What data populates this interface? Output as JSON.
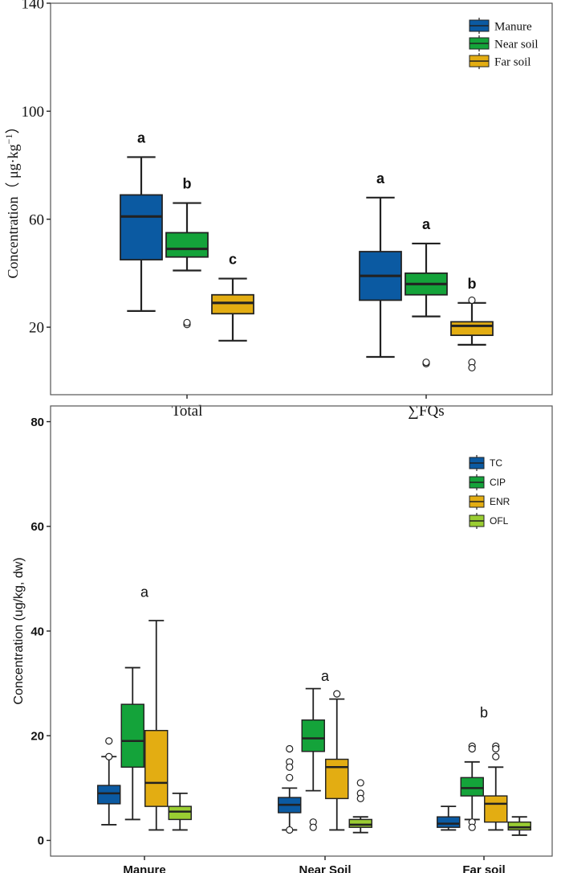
{
  "colors": {
    "manure": "#0b5aa2",
    "near": "#14a33a",
    "far": "#e3ad12",
    "ofl": "#9acd32",
    "line": "#222222",
    "frame": "#555555"
  },
  "chart_data": [
    {
      "type": "box",
      "title": "",
      "xlabel": "",
      "ylabel_prefix": "Concentration（ μg·kg",
      "ylabel_sup": "−1",
      "ylabel_suffix": "）",
      "ylim": [
        -5,
        140
      ],
      "yticks": [
        20,
        60,
        100,
        140
      ],
      "categories": [
        "Total",
        "∑FQs"
      ],
      "legend": [
        "Manure",
        "Near soil",
        "Far soil"
      ],
      "legend_position": "top-right",
      "series": [
        {
          "name": "Manure",
          "color": "#0b5aa2",
          "boxes": [
            {
              "min": 26,
              "q1": 45,
              "median": 61,
              "q3": 69,
              "max": 83,
              "outliers": [],
              "letter": "a"
            },
            {
              "min": 9,
              "q1": 30,
              "median": 39,
              "q3": 48,
              "max": 68,
              "outliers": [],
              "letter": "a"
            }
          ]
        },
        {
          "name": "Near soil",
          "color": "#14a33a",
          "boxes": [
            {
              "min": 41,
              "q1": 46,
              "median": 49,
              "q3": 55,
              "max": 66,
              "outliers": [
                21,
                21.7
              ],
              "letter": "b"
            },
            {
              "min": 24,
              "q1": 32,
              "median": 36,
              "q3": 40,
              "max": 51,
              "outliers": [
                6.5,
                7
              ],
              "letter": "a"
            }
          ]
        },
        {
          "name": "Far soil",
          "color": "#e3ad12",
          "boxes": [
            {
              "min": 15,
              "q1": 25,
              "median": 29,
              "q3": 32,
              "max": 38,
              "outliers": [],
              "letter": "c"
            },
            {
              "min": 13.5,
              "q1": 17,
              "median": 20.5,
              "q3": 22,
              "max": 29,
              "outliers": [
                30,
                7,
                5
              ],
              "letter": "b"
            }
          ]
        }
      ]
    },
    {
      "type": "box",
      "title": "",
      "xlabel": "",
      "ylabel": "Concentration (ug/kg, dw)",
      "ylim": [
        -3,
        83
      ],
      "yticks": [
        0,
        20,
        40,
        60,
        80
      ],
      "categories": [
        "Manure",
        "Near Soil",
        "Far soil"
      ],
      "legend": [
        "TC",
        "CIP",
        "ENR",
        "OFL"
      ],
      "legend_position": "top-right",
      "group_letters": [
        {
          "letter": "a",
          "y": 46.5
        },
        {
          "letter": "a",
          "y": 30.5
        },
        {
          "letter": "b",
          "y": 23.5
        }
      ],
      "series": [
        {
          "name": "TC",
          "color": "#0b5aa2",
          "boxes": [
            {
              "min": 3,
              "q1": 7,
              "median": 9,
              "q3": 10.5,
              "max": 16,
              "outliers": [
                19,
                16
              ]
            },
            {
              "min": 2,
              "q1": 5.3,
              "median": 6.8,
              "q3": 8.2,
              "max": 10,
              "outliers": [
                17.5,
                15,
                14,
                12,
                2
              ]
            },
            {
              "min": 2,
              "q1": 2.5,
              "median": 3.2,
              "q3": 4.5,
              "max": 6.5,
              "outliers": []
            }
          ]
        },
        {
          "name": "CIP",
          "color": "#14a33a",
          "boxes": [
            {
              "min": 4,
              "q1": 14,
              "median": 19,
              "q3": 26,
              "max": 33,
              "outliers": []
            },
            {
              "min": 9.5,
              "q1": 17,
              "median": 19.5,
              "q3": 23,
              "max": 29,
              "outliers": [
                3.5,
                2.5
              ]
            },
            {
              "min": 4,
              "q1": 8.5,
              "median": 10,
              "q3": 12,
              "max": 15,
              "outliers": [
                18,
                17.5,
                3.5,
                2.5
              ]
            }
          ]
        },
        {
          "name": "ENR",
          "color": "#e3ad12",
          "boxes": [
            {
              "min": 2,
              "q1": 6.5,
              "median": 11,
              "q3": 21,
              "max": 42,
              "outliers": []
            },
            {
              "min": 2,
              "q1": 8,
              "median": 14,
              "q3": 15.5,
              "max": 27,
              "outliers": [
                28
              ]
            },
            {
              "min": 2,
              "q1": 3.5,
              "median": 7,
              "q3": 8.5,
              "max": 14,
              "outliers": [
                18,
                17.5,
                16
              ]
            }
          ]
        },
        {
          "name": "OFL",
          "color": "#9acd32",
          "boxes": [
            {
              "min": 2,
              "q1": 4,
              "median": 5.5,
              "q3": 6.5,
              "max": 9,
              "outliers": []
            },
            {
              "min": 1.5,
              "q1": 2.5,
              "median": 3,
              "q3": 4,
              "max": 4.5,
              "outliers": [
                11,
                9,
                8
              ]
            },
            {
              "min": 1,
              "q1": 2,
              "median": 2.5,
              "q3": 3.5,
              "max": 4.5,
              "outliers": []
            }
          ]
        }
      ]
    }
  ]
}
